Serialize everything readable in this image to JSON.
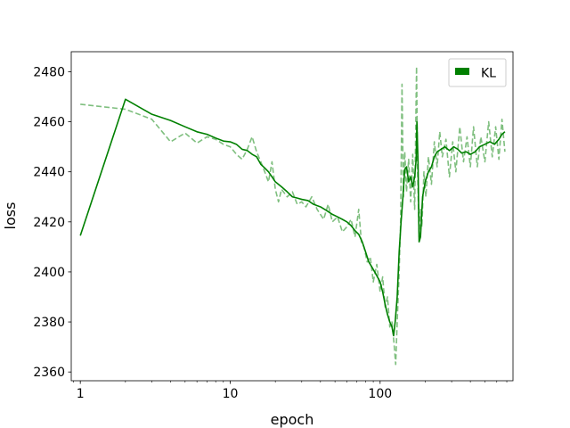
{
  "chart_data": {
    "type": "line",
    "xlabel": "epoch",
    "ylabel": "loss",
    "xscale": "log",
    "xlim": [
      0.87,
      770
    ],
    "ylim": [
      2356.5,
      2488
    ],
    "xticks": [
      {
        "value": 1,
        "label": "1"
      },
      {
        "value": 10,
        "label": "10"
      },
      {
        "value": 100,
        "label": "100"
      }
    ],
    "yticks": [
      {
        "value": 2360,
        "label": "2360"
      },
      {
        "value": 2380,
        "label": "2380"
      },
      {
        "value": 2400,
        "label": "2400"
      },
      {
        "value": 2420,
        "label": "2420"
      },
      {
        "value": 2440,
        "label": "2440"
      },
      {
        "value": 2460,
        "label": "2460"
      },
      {
        "value": 2480,
        "label": "2480"
      }
    ],
    "grid": false,
    "legend": {
      "position": "top-right",
      "entries": [
        "KL"
      ]
    },
    "colors": {
      "main": "#008000"
    },
    "series": [
      {
        "name": "KL",
        "style": "solid",
        "alpha": 1.0,
        "points": [
          [
            1,
            2414.5
          ],
          [
            2,
            2469
          ],
          [
            3,
            2463
          ],
          [
            4,
            2460.5
          ],
          [
            5,
            2458
          ],
          [
            6,
            2456
          ],
          [
            7,
            2455
          ],
          [
            8,
            2453.5
          ],
          [
            9,
            2452.3
          ],
          [
            10,
            2452
          ],
          [
            11,
            2451
          ],
          [
            12,
            2449
          ],
          [
            13,
            2448.5
          ],
          [
            14,
            2447
          ],
          [
            15,
            2446
          ],
          [
            16,
            2443
          ],
          [
            17,
            2441.5
          ],
          [
            18,
            2440
          ],
          [
            19,
            2438
          ],
          [
            20,
            2436
          ],
          [
            22,
            2434
          ],
          [
            24,
            2432
          ],
          [
            26,
            2430
          ],
          [
            28,
            2429.5
          ],
          [
            30,
            2429
          ],
          [
            33,
            2428.5
          ],
          [
            36,
            2427
          ],
          [
            40,
            2426
          ],
          [
            44,
            2424.5
          ],
          [
            48,
            2423
          ],
          [
            52,
            2422
          ],
          [
            56,
            2421
          ],
          [
            60,
            2420
          ],
          [
            64,
            2418.5
          ],
          [
            68,
            2416.5
          ],
          [
            72,
            2415
          ],
          [
            76,
            2412
          ],
          [
            80,
            2408
          ],
          [
            84,
            2404
          ],
          [
            88,
            2402
          ],
          [
            92,
            2400
          ],
          [
            96,
            2398
          ],
          [
            100,
            2396
          ],
          [
            104,
            2392
          ],
          [
            108,
            2387
          ],
          [
            112,
            2383
          ],
          [
            116,
            2380
          ],
          [
            120,
            2378
          ],
          [
            123,
            2374.5
          ],
          [
            126,
            2380
          ],
          [
            130,
            2390
          ],
          [
            134,
            2408
          ],
          [
            138,
            2420
          ],
          [
            142,
            2430
          ],
          [
            146,
            2441
          ],
          [
            150,
            2442
          ],
          [
            155,
            2436
          ],
          [
            160,
            2438
          ],
          [
            165,
            2434
          ],
          [
            170,
            2438
          ],
          [
            174,
            2445
          ],
          [
            176,
            2460
          ],
          [
            179,
            2444
          ],
          [
            182,
            2412
          ],
          [
            186,
            2414
          ],
          [
            192,
            2430
          ],
          [
            200,
            2436
          ],
          [
            210,
            2440
          ],
          [
            220,
            2442
          ],
          [
            230,
            2446
          ],
          [
            240,
            2448
          ],
          [
            255,
            2449
          ],
          [
            270,
            2450
          ],
          [
            290,
            2448.5
          ],
          [
            310,
            2450
          ],
          [
            330,
            2449
          ],
          [
            350,
            2447.5
          ],
          [
            375,
            2448
          ],
          [
            400,
            2447
          ],
          [
            430,
            2448
          ],
          [
            460,
            2450
          ],
          [
            500,
            2451
          ],
          [
            540,
            2452
          ],
          [
            580,
            2451
          ],
          [
            620,
            2453
          ],
          [
            650,
            2455
          ],
          [
            680,
            2456
          ]
        ]
      },
      {
        "name": "",
        "style": "dashed",
        "alpha": 0.5,
        "points": [
          [
            1,
            2467
          ],
          [
            2,
            2465
          ],
          [
            3,
            2461
          ],
          [
            4,
            2452
          ],
          [
            5,
            2455.5
          ],
          [
            6,
            2451.5
          ],
          [
            7,
            2454
          ],
          [
            8,
            2453
          ],
          [
            9,
            2451
          ],
          [
            10,
            2450
          ],
          [
            11,
            2447
          ],
          [
            12,
            2445
          ],
          [
            13,
            2449
          ],
          [
            14,
            2454
          ],
          [
            15,
            2448
          ],
          [
            16,
            2444
          ],
          [
            17,
            2440
          ],
          [
            18,
            2436
          ],
          [
            19,
            2444
          ],
          [
            20,
            2433
          ],
          [
            21,
            2428
          ],
          [
            22,
            2433
          ],
          [
            24,
            2430
          ],
          [
            26,
            2432
          ],
          [
            28,
            2427
          ],
          [
            30,
            2428
          ],
          [
            32,
            2426
          ],
          [
            35,
            2430
          ],
          [
            38,
            2425
          ],
          [
            42,
            2421
          ],
          [
            45,
            2427
          ],
          [
            48,
            2420
          ],
          [
            52,
            2422
          ],
          [
            56,
            2416
          ],
          [
            60,
            2418
          ],
          [
            64,
            2421
          ],
          [
            68,
            2414
          ],
          [
            72,
            2425
          ],
          [
            75,
            2412
          ],
          [
            78,
            2410
          ],
          [
            82,
            2404
          ],
          [
            86,
            2406
          ],
          [
            90,
            2396
          ],
          [
            95,
            2403
          ],
          [
            100,
            2392
          ],
          [
            104,
            2398
          ],
          [
            108,
            2386
          ],
          [
            112,
            2390
          ],
          [
            116,
            2378
          ],
          [
            120,
            2380
          ],
          [
            124,
            2371
          ],
          [
            127,
            2363
          ],
          [
            130,
            2380
          ],
          [
            134,
            2400
          ],
          [
            137,
            2420
          ],
          [
            140,
            2475
          ],
          [
            143,
            2430
          ],
          [
            146,
            2448
          ],
          [
            150,
            2432
          ],
          [
            155,
            2445
          ],
          [
            160,
            2428
          ],
          [
            165,
            2447
          ],
          [
            170,
            2425
          ],
          [
            175,
            2482
          ],
          [
            178,
            2440
          ],
          [
            182,
            2414
          ],
          [
            186,
            2425
          ],
          [
            190,
            2418
          ],
          [
            196,
            2440
          ],
          [
            202,
            2430
          ],
          [
            210,
            2446
          ],
          [
            220,
            2435
          ],
          [
            230,
            2452
          ],
          [
            240,
            2442
          ],
          [
            250,
            2456
          ],
          [
            260,
            2446
          ],
          [
            275,
            2453
          ],
          [
            290,
            2438
          ],
          [
            305,
            2452
          ],
          [
            320,
            2440
          ],
          [
            340,
            2458
          ],
          [
            360,
            2444
          ],
          [
            380,
            2454
          ],
          [
            400,
            2442
          ],
          [
            420,
            2458
          ],
          [
            445,
            2442
          ],
          [
            470,
            2454
          ],
          [
            500,
            2444
          ],
          [
            530,
            2460
          ],
          [
            560,
            2446
          ],
          [
            590,
            2458
          ],
          [
            620,
            2445
          ],
          [
            650,
            2461
          ],
          [
            680,
            2448
          ]
        ]
      }
    ]
  }
}
